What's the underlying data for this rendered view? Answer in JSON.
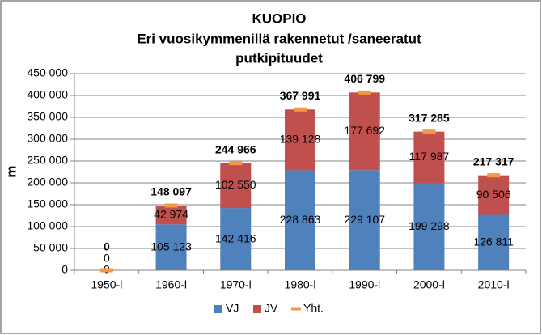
{
  "chart_data": {
    "type": "bar",
    "stacked": true,
    "title": [
      "KUOPIO",
      "Eri vuosikymmenillä  rakennetut /saneeratut",
      "putkipituudet"
    ],
    "y_label": "m",
    "categories": [
      "1950-l",
      "1960-l",
      "1970-l",
      "1980-l",
      "1990-l",
      "2000-l",
      "2010-l"
    ],
    "series": [
      {
        "name": "VJ",
        "type": "bar",
        "color": "#4f81bd",
        "values": [
          0,
          105123,
          142416,
          228863,
          229107,
          199298,
          126811
        ],
        "value_labels": [
          "0",
          "105 123",
          "142 416",
          "228 863",
          "229 107",
          "199 298",
          "126 811"
        ]
      },
      {
        "name": "JV",
        "type": "bar",
        "color": "#c0504d",
        "values": [
          0,
          42974,
          102550,
          139128,
          177692,
          117987,
          90506
        ],
        "value_labels": [
          "0",
          "42 974",
          "102 550",
          "139 128",
          "177 692",
          "117 987",
          "90 506"
        ]
      },
      {
        "name": "Yht.",
        "type": "line",
        "marker": "dash",
        "color": "#f79646",
        "values": [
          0,
          148097,
          244966,
          367991,
          406799,
          317285,
          217317
        ],
        "value_labels": [
          "0",
          "148 097",
          "244 966",
          "367 991",
          "406 799",
          "317 285",
          "217 317"
        ]
      }
    ],
    "ylim": [
      0,
      450000
    ],
    "yticks": [
      0,
      {
        "value": 50000,
        "label": "50 000"
      },
      {
        "value": 100000,
        "label": "100 000"
      },
      {
        "value": 150000,
        "label": "150 000"
      },
      {
        "value": 200000,
        "label": "200 000"
      },
      {
        "value": 250000,
        "label": "250 000"
      },
      {
        "value": 300000,
        "label": "300 000"
      },
      {
        "value": 350000,
        "label": "350 000"
      },
      {
        "value": 400000,
        "label": "400 000"
      },
      {
        "value": 450000,
        "label": "450 000"
      }
    ],
    "grid": true,
    "legend": "bottom"
  }
}
